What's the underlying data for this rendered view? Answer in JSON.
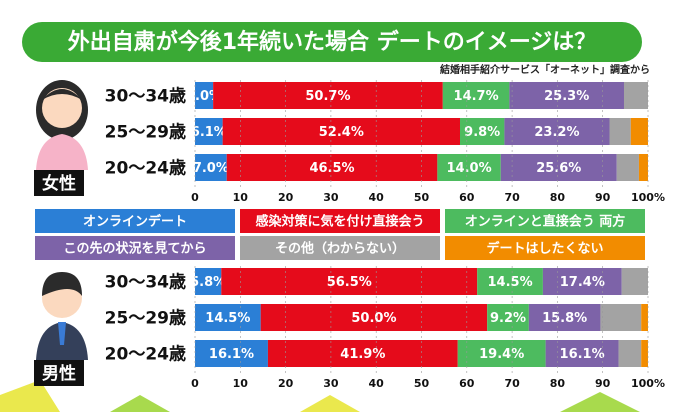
{
  "title": "外出自粛が今後1年続いた場合 デートのイメージは？",
  "source": "結婚相手紹介サービス「オーネット」調査から",
  "legend": [
    {
      "name": "オンラインデート",
      "color": "#2b7fd6"
    },
    {
      "name": "感染対策に気を付け直接会う",
      "color": "#e50b1b"
    },
    {
      "name": "オンラインと直接会う 両方",
      "color": "#4dbb5f"
    },
    {
      "name": "この先の状況を見てから",
      "color": "#7d63a8"
    },
    {
      "name": "その他（わからない）",
      "color": "#a3a3a3"
    },
    {
      "name": "デートはしたくない",
      "color": "#f28c00"
    }
  ],
  "chart_data": [
    {
      "type": "bar",
      "stacked": true,
      "orientation": "horizontal",
      "label": "女性",
      "categories": [
        "30〜34歳",
        "25〜29歳",
        "20〜24歳"
      ],
      "xlim": [
        0,
        100
      ],
      "xticks": [
        0,
        10,
        20,
        30,
        40,
        50,
        60,
        70,
        80,
        90,
        {
          "value": 100,
          "label": "100%"
        }
      ],
      "series": [
        {
          "values": [
            4.0,
            6.1,
            7.0
          ],
          "value_labels": [
            "4.0%",
            "6.1%",
            "7.0%"
          ]
        },
        {
          "values": [
            50.7,
            52.4,
            46.5
          ],
          "value_labels": [
            "50.7%",
            "52.4%",
            "46.5%"
          ]
        },
        {
          "values": [
            14.7,
            9.8,
            14.0
          ],
          "value_labels": [
            "14.7%",
            "9.8%",
            "14.0%"
          ]
        },
        {
          "values": [
            25.3,
            23.2,
            25.6
          ],
          "value_labels": [
            "25.3%",
            "23.2%",
            "25.6%"
          ]
        },
        {
          "values": [
            5.3,
            4.7,
            4.9
          ],
          "value_labels": [
            null,
            null,
            null
          ]
        },
        {
          "values": [
            0,
            3.8,
            2.0
          ],
          "value_labels": [
            null,
            null,
            null
          ]
        }
      ]
    },
    {
      "type": "bar",
      "stacked": true,
      "orientation": "horizontal",
      "label": "男性",
      "categories": [
        "30〜34歳",
        "25〜29歳",
        "20〜24歳"
      ],
      "xlim": [
        0,
        100
      ],
      "xticks": [
        0,
        10,
        20,
        30,
        40,
        50,
        60,
        70,
        80,
        90,
        {
          "value": 100,
          "label": "100%"
        }
      ],
      "series": [
        {
          "values": [
            5.8,
            14.5,
            16.1
          ],
          "value_labels": [
            "5.8%",
            "14.5%",
            "16.1%"
          ]
        },
        {
          "values": [
            56.5,
            50.0,
            41.9
          ],
          "value_labels": [
            "56.5%",
            "50.0%",
            "41.9%"
          ]
        },
        {
          "values": [
            14.5,
            9.2,
            19.4
          ],
          "value_labels": [
            "14.5%",
            "9.2%",
            "19.4%"
          ]
        },
        {
          "values": [
            17.4,
            15.8,
            16.1
          ],
          "value_labels": [
            "17.4%",
            "15.8%",
            "16.1%"
          ]
        },
        {
          "values": [
            5.8,
            9.0,
            5.0
          ],
          "value_labels": [
            null,
            null,
            null
          ]
        },
        {
          "values": [
            0,
            1.5,
            1.5
          ],
          "value_labels": [
            null,
            null,
            null
          ]
        }
      ]
    }
  ]
}
